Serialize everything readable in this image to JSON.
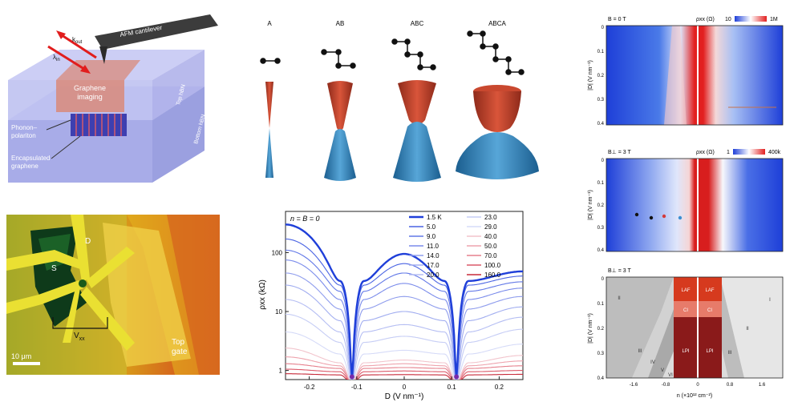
{
  "schematic": {
    "label_kout": "k",
    "label_kout_sub": "out",
    "label_kin": "λ",
    "label_kin_sub": "in",
    "cantilever": "AFM cantilever",
    "graphene_imaging": [
      "Graphene",
      "imaging"
    ],
    "phonon_polariton": [
      "Phonon–",
      "polariton"
    ],
    "encapsulated": [
      "Encapsulated",
      "graphene"
    ],
    "top_hbn": "Top hBN",
    "bottom_hbn": "Bottom hBN"
  },
  "stacks": {
    "labels": [
      "A",
      "AB",
      "ABC",
      "ABCA"
    ]
  },
  "micrograph": {
    "label_d": "D",
    "label_s": "S",
    "label_vxx": "V",
    "label_vxx_sub": "xx",
    "scale_bar": "10 μm",
    "top_gate": [
      "Top",
      "gate"
    ]
  },
  "map_top": {
    "field_label": "B = 0 T",
    "cbar_label": "ρxx (Ω)",
    "cbar_min": "10",
    "cbar_max": "1M",
    "ylabel": "|D| (V nm⁻¹)",
    "yticks": [
      "0",
      "0.1",
      "0.2",
      "0.3",
      "0.4"
    ]
  },
  "map_mid": {
    "field_label": "B⊥ = 3 T",
    "cbar_label": "ρxx (Ω)",
    "cbar_min": "1",
    "cbar_max": "400k",
    "ylabel": "|D| (V nm⁻¹)",
    "yticks": [
      "0",
      "0.1",
      "0.2",
      "0.3",
      "0.4"
    ],
    "dot_colors": [
      "#111111",
      "#111111",
      "#d33b3b",
      "#3b8fd3"
    ]
  },
  "phase_diagram": {
    "field_label": "B⊥ = 3 T",
    "ylabel": "|D| (V nm⁻¹)",
    "xlabel": "n (×10¹² cm⁻²)",
    "yticks": [
      "0",
      "0.1",
      "0.2",
      "0.3",
      "0.4"
    ],
    "xticks": [
      "-1.6",
      "-0.8",
      "0",
      "0.8",
      "1.6"
    ],
    "labels": [
      "II",
      "III",
      "IV",
      "V",
      "VI",
      "LAF",
      "LAF",
      "CI",
      "CI",
      "LPI",
      "LPI",
      "I",
      "II",
      "III"
    ]
  },
  "chart_data": {
    "type": "line",
    "title": "n = B = 0",
    "xlabel": "D (V nm⁻¹)",
    "ylabel": "ρxx (kΩ)",
    "xlim": [
      -0.25,
      0.25
    ],
    "ylim": [
      0.7,
      500
    ],
    "yscale": "log",
    "xticks": [
      -0.2,
      -0.1,
      0,
      0.1,
      0.2
    ],
    "xtick_labels": [
      "-0.2",
      "-0.1",
      "0",
      "0.1",
      "0.2"
    ],
    "yticks": [
      1,
      10,
      100
    ],
    "ytick_labels": [
      "1",
      "10",
      "100"
    ],
    "legend_position": "top-right",
    "series": [
      {
        "name": "1.5 K",
        "color": "#1f3fd9",
        "peak": 95,
        "edge": 300,
        "right_edge": 48,
        "shoulder": 33,
        "bold": true
      },
      {
        "name": "5.0",
        "color": "#4a64e3",
        "peak": 65,
        "edge": 170,
        "right_edge": 40,
        "shoulder": 28
      },
      {
        "name": "9.0",
        "color": "#6278e7",
        "peak": 45,
        "edge": 110,
        "right_edge": 32,
        "shoulder": 22
      },
      {
        "name": "11.0",
        "color": "#7b8ceb",
        "peak": 30,
        "edge": 75,
        "right_edge": 25,
        "shoulder": 16
      },
      {
        "name": "14.0",
        "color": "#8f9ded",
        "peak": 18,
        "edge": 45,
        "right_edge": 18,
        "shoulder": 11
      },
      {
        "name": "17.0",
        "color": "#a2aef0",
        "peak": 10,
        "edge": 28,
        "right_edge": 12,
        "shoulder": 7
      },
      {
        "name": "20.0",
        "color": "#b5bef3",
        "peak": 6,
        "edge": 16,
        "right_edge": 8,
        "shoulder": 4.5
      },
      {
        "name": "23.0",
        "color": "#c6cdf5",
        "peak": 3.8,
        "edge": 9,
        "right_edge": 5,
        "shoulder": 3
      },
      {
        "name": "29.0",
        "color": "#d6dbf8",
        "peak": 2.2,
        "edge": 4.5,
        "right_edge": 2.8,
        "shoulder": 1.9
      },
      {
        "name": "40.0",
        "color": "#f2c4cc",
        "peak": 1.5,
        "edge": 2.4,
        "right_edge": 1.8,
        "shoulder": 1.35
      },
      {
        "name": "50.0",
        "color": "#eea3ad",
        "peak": 1.3,
        "edge": 1.7,
        "right_edge": 1.45,
        "shoulder": 1.2
      },
      {
        "name": "70.0",
        "color": "#e6808d",
        "peak": 1.12,
        "edge": 1.3,
        "right_edge": 1.2,
        "shoulder": 1.08
      },
      {
        "name": "100.0",
        "color": "#dc5a6a",
        "peak": 0.98,
        "edge": 1.05,
        "right_edge": 1.0,
        "shoulder": 0.95
      },
      {
        "name": "160.0",
        "color": "#c72a3a",
        "peak": 0.85,
        "edge": 0.88,
        "right_edge": 0.86,
        "shoulder": 0.84
      }
    ]
  }
}
